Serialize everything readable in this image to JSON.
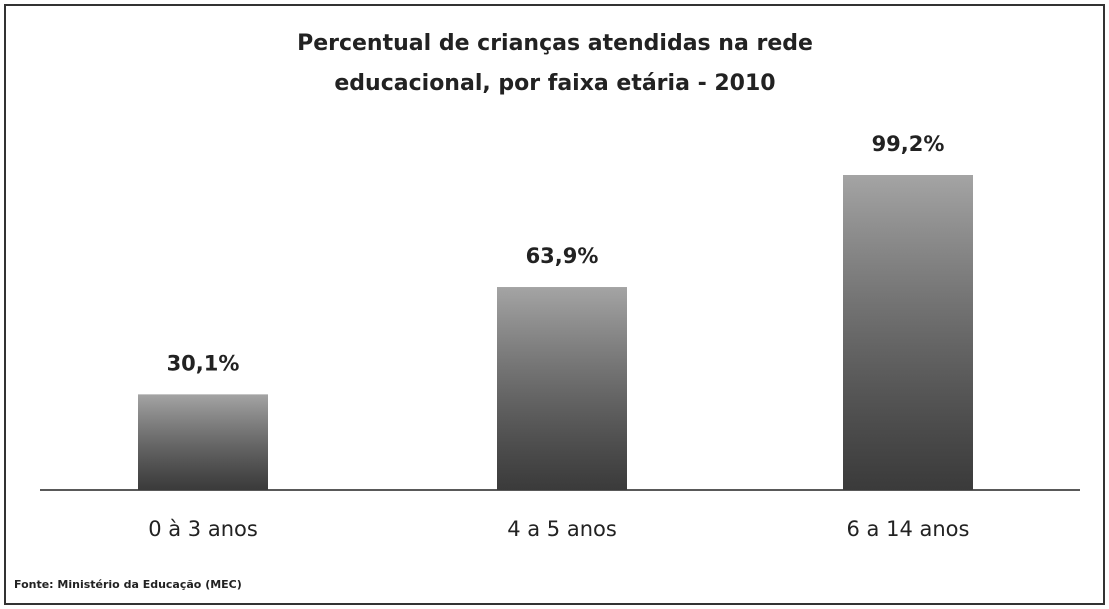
{
  "chart_data": {
    "type": "bar",
    "title": "Percentual de crianças atendidas na rede educacional, por faixa etária - 2010",
    "categories": [
      "0 à 3 anos",
      "4 a 5 anos",
      "6 a 14 anos"
    ],
    "values": [
      30.1,
      63.9,
      99.2
    ],
    "value_labels": [
      "30,1%",
      "63,9%",
      "99,2%"
    ],
    "color": "#5a5a5a",
    "source": "Fonte: Ministério da Educação (MEC)"
  }
}
